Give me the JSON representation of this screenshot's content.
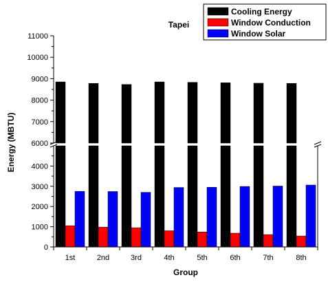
{
  "chart_data": {
    "type": "bar",
    "title": "Tapei",
    "xlabel": "Group",
    "ylabel": "Energy (MBTU)",
    "categories": [
      "1st",
      "2nd",
      "3rd",
      "4th",
      "5th",
      "6th",
      "7th",
      "8th"
    ],
    "series": [
      {
        "name": "Cooling Energy",
        "color": "#000000",
        "values": [
          8850,
          8780,
          8730,
          8850,
          8830,
          8810,
          8790,
          8780
        ]
      },
      {
        "name": "Window Conduction",
        "color": "#ff0000",
        "values": [
          1050,
          980,
          950,
          800,
          740,
          680,
          610,
          540
        ]
      },
      {
        "name": "Window Solar",
        "color": "#0000ff",
        "values": [
          2750,
          2740,
          2700,
          2940,
          2950,
          2990,
          3010,
          3060
        ]
      }
    ],
    "axis_break": {
      "lower_range": [
        0,
        5000
      ],
      "upper_range": [
        6000,
        11000
      ]
    },
    "y_ticks_lower": [
      "0",
      "1000",
      "2000",
      "3000",
      "4000"
    ],
    "y_ticks_upper": [
      "6000",
      "7000",
      "8000",
      "9000",
      "10000",
      "11000"
    ],
    "legend_position": "top-right",
    "grid": false
  }
}
